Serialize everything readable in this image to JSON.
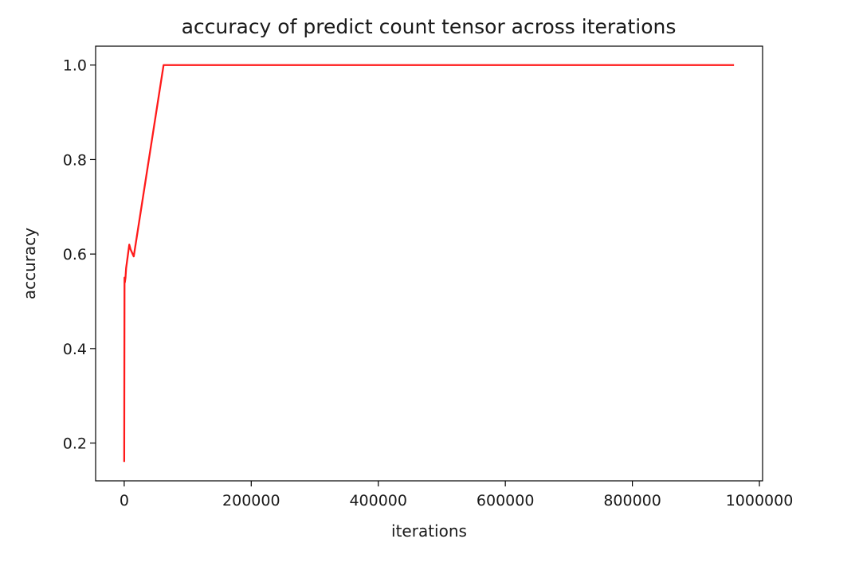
{
  "chart_data": {
    "type": "line",
    "title": "accuracy of predict count tensor across iterations",
    "xlabel": "iterations",
    "ylabel": "accuracy",
    "xlim": [
      -45000,
      1005000
    ],
    "ylim": [
      0.12,
      1.04
    ],
    "grid": false,
    "x_ticks": [
      0,
      200000,
      400000,
      600000,
      800000,
      1000000
    ],
    "x_tick_labels": [
      "0",
      "200000",
      "400000",
      "600000",
      "800000",
      "1000000"
    ],
    "y_ticks": [
      0.2,
      0.4,
      0.6,
      0.8,
      1.0
    ],
    "y_tick_labels": [
      "0.2",
      "0.4",
      "0.6",
      "0.8",
      "1.0"
    ],
    "series": [
      {
        "color": "#ff1a1a",
        "x": [
          0,
          500,
          1000,
          2000,
          3000,
          5000,
          8000,
          10000,
          15000,
          62000,
          960000
        ],
        "y": [
          0.16,
          0.55,
          0.54,
          0.55,
          0.57,
          0.59,
          0.62,
          0.61,
          0.595,
          1.0,
          1.0
        ]
      }
    ]
  }
}
